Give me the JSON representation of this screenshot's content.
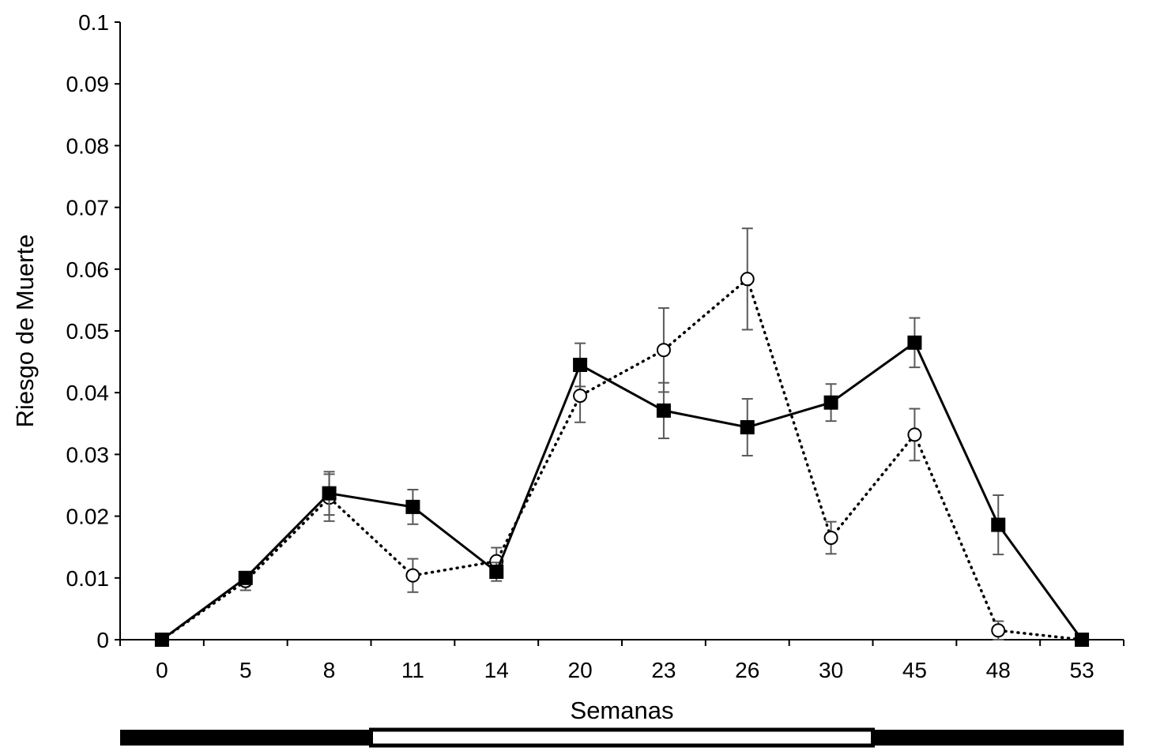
{
  "chart_data": {
    "type": "line",
    "title": "",
    "xlabel": "Semanas",
    "ylabel": "Riesgo de Muerte",
    "categories": [
      "0",
      "5",
      "8",
      "11",
      "14",
      "20",
      "23",
      "26",
      "30",
      "45",
      "48",
      "53"
    ],
    "ylim": [
      0,
      0.1
    ],
    "yticks": [
      "0",
      "0.01",
      "0.02",
      "0.03",
      "0.04",
      "0.05",
      "0.06",
      "0.07",
      "0.08",
      "0.09",
      "0.1"
    ],
    "grid": false,
    "series": [
      {
        "name": "solid-squares",
        "marker": "filled-square",
        "line_style": "solid",
        "values": [
          0,
          0.01,
          0.0237,
          0.0215,
          0.011,
          0.0445,
          0.0371,
          0.0344,
          0.0384,
          0.0481,
          0.0186,
          0
        ],
        "error": [
          0,
          0.0008,
          0.0035,
          0.0028,
          0.0015,
          0.0035,
          0.0045,
          0.0046,
          0.003,
          0.004,
          0.0048,
          0
        ]
      },
      {
        "name": "dotted-circles",
        "marker": "open-circle",
        "line_style": "dotted",
        "values": [
          0,
          0.0095,
          0.023,
          0.0104,
          0.0127,
          0.0395,
          0.0469,
          0.0584,
          0.0165,
          0.0332,
          0.0015,
          0
        ],
        "error": [
          0,
          0.0015,
          0.0038,
          0.0027,
          0.0022,
          0.0043,
          0.0068,
          0.0082,
          0.0026,
          0.0042,
          0.0015,
          0
        ]
      }
    ],
    "period_bar": [
      {
        "from": 0,
        "to": 3,
        "fill": "#000000"
      },
      {
        "from": 3,
        "to": 9,
        "fill": "#ffffff"
      },
      {
        "from": 9,
        "to": 12,
        "fill": "#000000"
      }
    ]
  },
  "colors": {
    "line": "#000000",
    "error_bar": "#595959",
    "axis": "#000000",
    "background": "#ffffff"
  }
}
